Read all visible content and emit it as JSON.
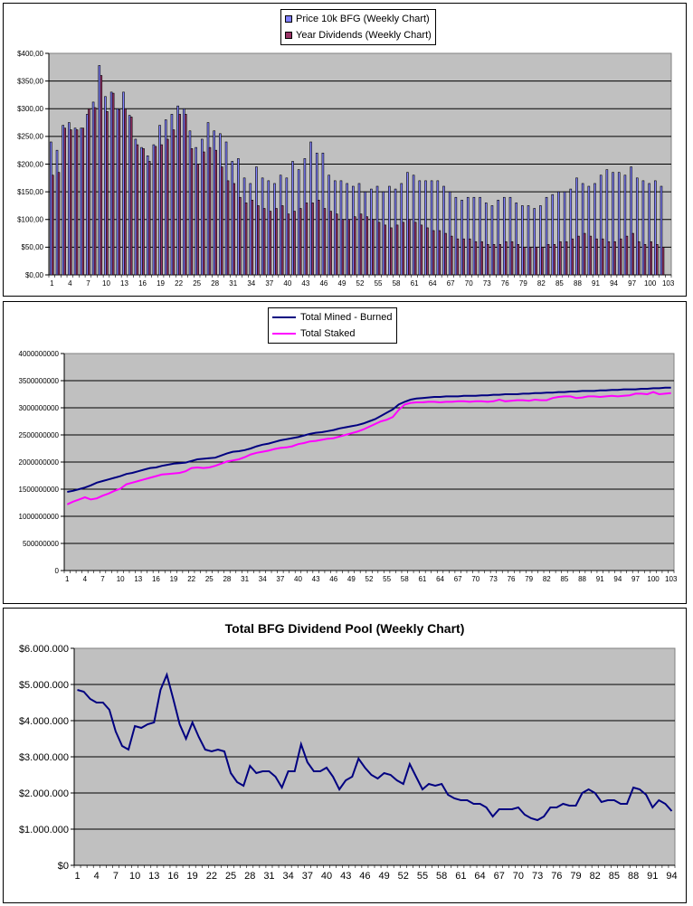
{
  "chart_data": [
    {
      "type": "bar",
      "title": "",
      "xlabel": "",
      "ylabel": "",
      "legend_position": "top-center",
      "grid": true,
      "ylim": [
        0,
        400
      ],
      "y_ticks": [
        "$0,00",
        "$50,00",
        "$100,00",
        "$150,00",
        "$200,00",
        "$250,00",
        "$300,00",
        "$350,00",
        "$400,00"
      ],
      "x_ticks": [
        "1",
        "4",
        "7",
        "10",
        "13",
        "16",
        "19",
        "22",
        "25",
        "28",
        "31",
        "34",
        "37",
        "40",
        "43",
        "46",
        "49",
        "52",
        "55",
        "58",
        "61",
        "64",
        "67",
        "70",
        "73",
        "76",
        "79",
        "82",
        "85",
        "88",
        "91",
        "94",
        "97",
        "100",
        "103"
      ],
      "x_count": 103,
      "series": [
        {
          "name": "Price 10k BFG (Weekly Chart)",
          "color": "#8080ff",
          "values": [
            240,
            225,
            270,
            275,
            265,
            265,
            290,
            312,
            378,
            322,
            330,
            300,
            330,
            288,
            245,
            230,
            215,
            235,
            270,
            280,
            290,
            305,
            300,
            260,
            230,
            245,
            275,
            260,
            255,
            240,
            205,
            210,
            175,
            165,
            195,
            175,
            170,
            165,
            180,
            175,
            205,
            190,
            210,
            240,
            220,
            220,
            180,
            170,
            170,
            165,
            160,
            165,
            150,
            155,
            160,
            150,
            160,
            155,
            165,
            185,
            180,
            170,
            170,
            170,
            170,
            160,
            150,
            140,
            135,
            140,
            140,
            140,
            130,
            125,
            135,
            140,
            140,
            130,
            125,
            125,
            120,
            125,
            140,
            145,
            150,
            150,
            155,
            175,
            165,
            160,
            165,
            180,
            190,
            185,
            185,
            180,
            195,
            175,
            170,
            165,
            170,
            160,
            0
          ]
        },
        {
          "name": "Year Dividends (Weekly Chart)",
          "color": "#993366",
          "values": [
            180,
            185,
            265,
            262,
            262,
            265,
            300,
            302,
            360,
            295,
            328,
            298,
            300,
            285,
            235,
            228,
            205,
            232,
            235,
            245,
            262,
            290,
            290,
            228,
            200,
            222,
            230,
            225,
            195,
            170,
            165,
            140,
            130,
            135,
            125,
            120,
            115,
            120,
            125,
            110,
            115,
            120,
            130,
            130,
            135,
            120,
            115,
            110,
            100,
            100,
            105,
            110,
            105,
            100,
            95,
            90,
            85,
            90,
            95,
            100,
            95,
            90,
            85,
            80,
            80,
            75,
            70,
            65,
            65,
            65,
            60,
            60,
            55,
            55,
            55,
            60,
            60,
            55,
            50,
            50,
            50,
            50,
            55,
            55,
            60,
            60,
            65,
            70,
            75,
            70,
            65,
            65,
            60,
            60,
            65,
            70,
            75,
            60,
            55,
            60,
            55,
            50,
            0
          ]
        }
      ]
    },
    {
      "type": "line",
      "title": "",
      "xlabel": "",
      "ylabel": "",
      "legend_position": "top-center",
      "grid": true,
      "ylim": [
        0,
        4000000000
      ],
      "y_ticks": [
        "0",
        "500000000",
        "1000000000",
        "1500000000",
        "2000000000",
        "2500000000",
        "3000000000",
        "3500000000",
        "4000000000"
      ],
      "x_ticks": [
        "1",
        "4",
        "7",
        "10",
        "13",
        "16",
        "19",
        "22",
        "25",
        "28",
        "31",
        "34",
        "37",
        "40",
        "43",
        "46",
        "49",
        "52",
        "55",
        "58",
        "61",
        "64",
        "67",
        "70",
        "73",
        "76",
        "79",
        "82",
        "85",
        "88",
        "91",
        "94",
        "97",
        "100",
        "103"
      ],
      "x_count": 103,
      "series": [
        {
          "name": "Total Mined - Burned",
          "color": "#000080",
          "values": [
            1450000000,
            1470000000,
            1500000000,
            1530000000,
            1570000000,
            1620000000,
            1650000000,
            1680000000,
            1710000000,
            1740000000,
            1780000000,
            1800000000,
            1830000000,
            1860000000,
            1890000000,
            1900000000,
            1930000000,
            1950000000,
            1970000000,
            1980000000,
            1990000000,
            2020000000,
            2050000000,
            2060000000,
            2070000000,
            2080000000,
            2120000000,
            2160000000,
            2190000000,
            2200000000,
            2220000000,
            2250000000,
            2290000000,
            2320000000,
            2340000000,
            2370000000,
            2400000000,
            2420000000,
            2440000000,
            2460000000,
            2490000000,
            2520000000,
            2540000000,
            2550000000,
            2570000000,
            2590000000,
            2620000000,
            2640000000,
            2660000000,
            2680000000,
            2710000000,
            2750000000,
            2790000000,
            2850000000,
            2910000000,
            2970000000,
            3060000000,
            3110000000,
            3150000000,
            3170000000,
            3180000000,
            3190000000,
            3200000000,
            3200000000,
            3210000000,
            3210000000,
            3210000000,
            3220000000,
            3220000000,
            3220000000,
            3230000000,
            3230000000,
            3240000000,
            3240000000,
            3250000000,
            3250000000,
            3250000000,
            3260000000,
            3260000000,
            3270000000,
            3270000000,
            3280000000,
            3280000000,
            3290000000,
            3290000000,
            3300000000,
            3300000000,
            3310000000,
            3310000000,
            3310000000,
            3320000000,
            3320000000,
            3330000000,
            3330000000,
            3340000000,
            3340000000,
            3340000000,
            3350000000,
            3350000000,
            3360000000,
            3360000000,
            3370000000,
            3370000000
          ]
        },
        {
          "name": "Total Staked",
          "color": "#ff00ff",
          "values": [
            1220000000,
            1270000000,
            1310000000,
            1350000000,
            1310000000,
            1330000000,
            1380000000,
            1420000000,
            1470000000,
            1510000000,
            1590000000,
            1620000000,
            1650000000,
            1680000000,
            1710000000,
            1740000000,
            1770000000,
            1780000000,
            1790000000,
            1800000000,
            1830000000,
            1890000000,
            1900000000,
            1890000000,
            1900000000,
            1930000000,
            1970000000,
            2010000000,
            2030000000,
            2050000000,
            2090000000,
            2140000000,
            2170000000,
            2190000000,
            2210000000,
            2240000000,
            2260000000,
            2270000000,
            2290000000,
            2330000000,
            2350000000,
            2380000000,
            2390000000,
            2410000000,
            2430000000,
            2440000000,
            2470000000,
            2500000000,
            2530000000,
            2560000000,
            2600000000,
            2650000000,
            2700000000,
            2750000000,
            2780000000,
            2830000000,
            2960000000,
            3060000000,
            3090000000,
            3100000000,
            3100000000,
            3110000000,
            3110000000,
            3100000000,
            3110000000,
            3110000000,
            3120000000,
            3120000000,
            3110000000,
            3120000000,
            3120000000,
            3110000000,
            3120000000,
            3150000000,
            3120000000,
            3130000000,
            3140000000,
            3140000000,
            3130000000,
            3150000000,
            3140000000,
            3140000000,
            3180000000,
            3200000000,
            3210000000,
            3210000000,
            3180000000,
            3190000000,
            3210000000,
            3210000000,
            3200000000,
            3210000000,
            3220000000,
            3210000000,
            3220000000,
            3230000000,
            3260000000,
            3260000000,
            3250000000,
            3290000000,
            3250000000,
            3260000000,
            3270000000
          ]
        }
      ]
    },
    {
      "type": "line",
      "title": "Total BFG Dividend Pool (Weekly Chart)",
      "xlabel": "",
      "ylabel": "",
      "legend_position": "none",
      "grid": true,
      "ylim": [
        0,
        6000000
      ],
      "y_ticks": [
        "$0",
        "$1.000.000",
        "$2.000.000",
        "$3.000.000",
        "$4.000.000",
        "$5.000.000",
        "$6.000.000"
      ],
      "x_ticks": [
        "1",
        "4",
        "7",
        "10",
        "13",
        "16",
        "19",
        "22",
        "25",
        "28",
        "31",
        "34",
        "37",
        "40",
        "43",
        "46",
        "49",
        "52",
        "55",
        "58",
        "61",
        "64",
        "67",
        "70",
        "73",
        "76",
        "79",
        "82",
        "85",
        "88",
        "91",
        "94"
      ],
      "x_count": 94,
      "series": [
        {
          "name": "",
          "color": "#000080",
          "values": [
            4850000,
            4800000,
            4600000,
            4500000,
            4500000,
            4300000,
            3700000,
            3300000,
            3200000,
            3850000,
            3800000,
            3900000,
            3950000,
            4850000,
            5270000,
            4600000,
            3900000,
            3500000,
            3950000,
            3550000,
            3200000,
            3150000,
            3200000,
            3150000,
            2550000,
            2300000,
            2200000,
            2750000,
            2550000,
            2600000,
            2600000,
            2450000,
            2150000,
            2600000,
            2600000,
            3350000,
            2850000,
            2600000,
            2600000,
            2700000,
            2450000,
            2100000,
            2350000,
            2450000,
            2950000,
            2700000,
            2500000,
            2400000,
            2550000,
            2500000,
            2350000,
            2250000,
            2800000,
            2450000,
            2100000,
            2250000,
            2200000,
            2250000,
            1950000,
            1850000,
            1800000,
            1800000,
            1700000,
            1700000,
            1600000,
            1350000,
            1550000,
            1550000,
            1550000,
            1600000,
            1400000,
            1300000,
            1250000,
            1350000,
            1600000,
            1600000,
            1700000,
            1650000,
            1650000,
            2000000,
            2100000,
            2000000,
            1750000,
            1800000,
            1800000,
            1700000,
            1700000,
            2150000,
            2100000,
            1950000,
            1600000,
            1800000,
            1700000,
            1500000
          ]
        }
      ]
    }
  ]
}
